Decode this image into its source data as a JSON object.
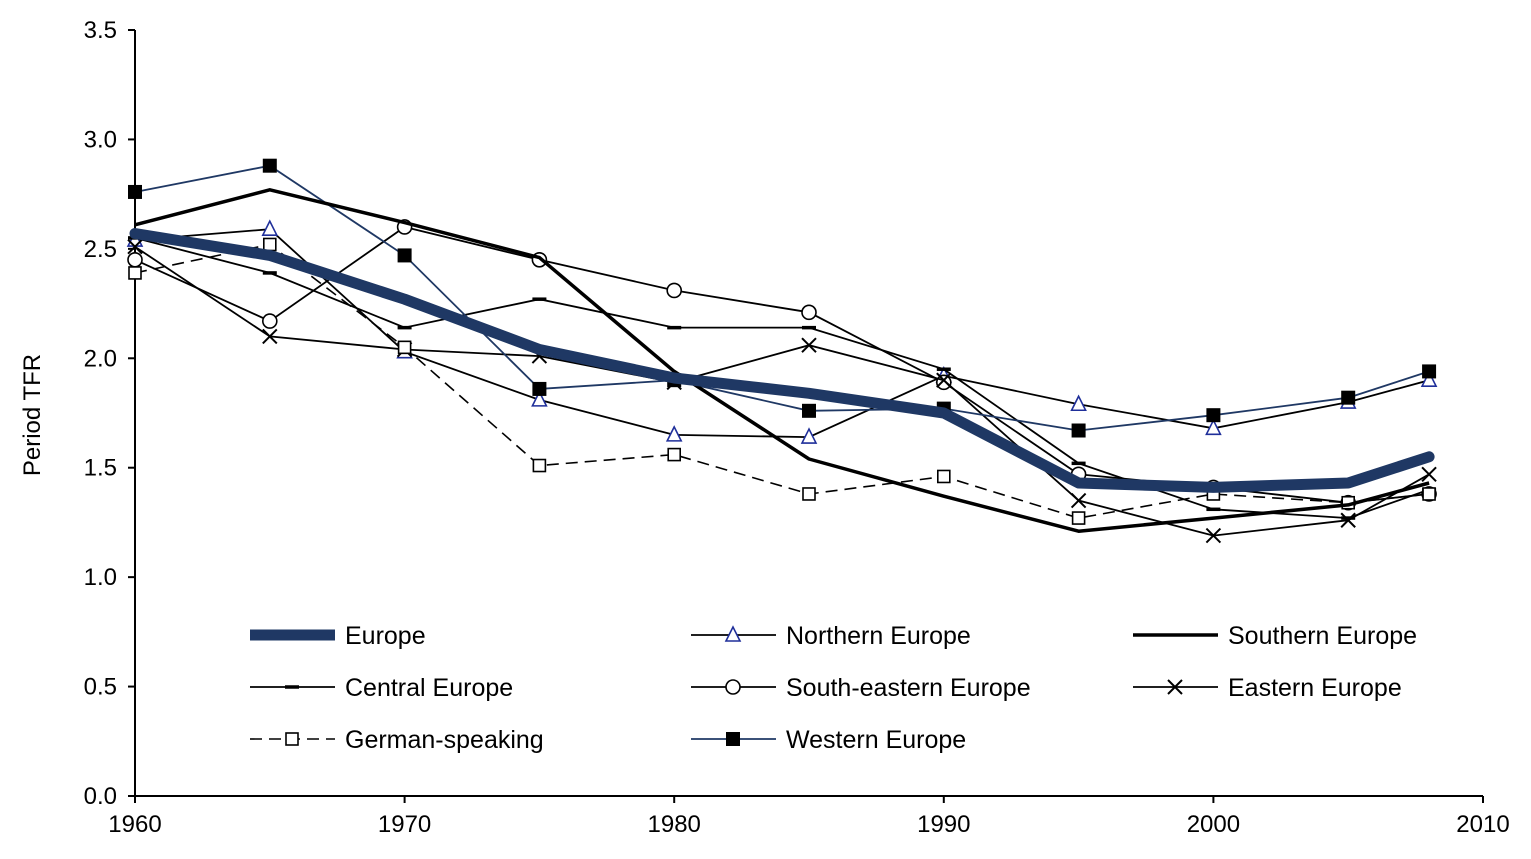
{
  "chart_data": {
    "type": "line",
    "title": "",
    "xlabel": "",
    "ylabel": "Period TFR",
    "xlim": [
      1960,
      2010
    ],
    "ylim": [
      0,
      3.5
    ],
    "xticks": [
      1960,
      1970,
      1980,
      1990,
      2000,
      2010
    ],
    "yticks": [
      "0.0",
      "0.5",
      "1.0",
      "1.5",
      "2.0",
      "2.5",
      "3.0",
      "3.5"
    ],
    "grid": false,
    "legend_position": "bottom-inside",
    "series": [
      {
        "name": "Europe",
        "style": "thick",
        "color": "#1f3864",
        "marker": "none",
        "x": [
          1960,
          1965,
          1970,
          1975,
          1980,
          1985,
          1990,
          1995,
          2000,
          2005,
          2008
        ],
        "y": [
          2.57,
          2.47,
          2.27,
          2.04,
          1.91,
          1.84,
          1.75,
          1.43,
          1.41,
          1.43,
          1.55
        ]
      },
      {
        "name": "Northern Europe",
        "style": "thin",
        "color": "#000000",
        "marker": "triangle",
        "x": [
          1960,
          1965,
          1970,
          1975,
          1980,
          1985,
          1990,
          1995,
          2000,
          2005,
          2008
        ],
        "y": [
          2.54,
          2.59,
          2.03,
          1.81,
          1.65,
          1.64,
          1.92,
          1.79,
          1.68,
          1.8,
          1.9
        ]
      },
      {
        "name": "Southern Europe",
        "style": "bold",
        "color": "#000000",
        "marker": "none",
        "x": [
          1960,
          1965,
          1970,
          1975,
          1980,
          1985,
          1990,
          1995,
          2000,
          2005,
          2008
        ],
        "y": [
          2.61,
          2.77,
          2.62,
          2.46,
          1.94,
          1.54,
          1.37,
          1.21,
          1.27,
          1.33,
          1.43
        ]
      },
      {
        "name": "Central Europe",
        "style": "thin",
        "color": "#000000",
        "marker": "dash",
        "x": [
          1960,
          1965,
          1970,
          1975,
          1980,
          1985,
          1990,
          1995,
          2000,
          2005,
          2008
        ],
        "y": [
          2.55,
          2.39,
          2.14,
          2.27,
          2.14,
          2.14,
          1.95,
          1.52,
          1.31,
          1.27,
          1.4
        ]
      },
      {
        "name": "South-eastern Europe",
        "style": "thin",
        "color": "#000000",
        "marker": "circle",
        "x": [
          1960,
          1965,
          1970,
          1975,
          1980,
          1985,
          1990,
          1995,
          2000,
          2005,
          2008
        ],
        "y": [
          2.45,
          2.17,
          2.6,
          2.45,
          2.31,
          2.21,
          1.89,
          1.47,
          1.41,
          1.34,
          1.38
        ]
      },
      {
        "name": "Eastern Europe",
        "style": "thin",
        "color": "#000000",
        "marker": "x",
        "x": [
          1960,
          1965,
          1970,
          1975,
          1980,
          1985,
          1990,
          1995,
          2000,
          2005,
          2008
        ],
        "y": [
          2.51,
          2.1,
          2.04,
          2.01,
          1.89,
          2.06,
          1.9,
          1.35,
          1.19,
          1.26,
          1.47
        ]
      },
      {
        "name": "German-speaking",
        "style": "dashed",
        "color": "#000000",
        "marker": "open-square",
        "x": [
          1960,
          1965,
          1970,
          1975,
          1980,
          1985,
          1990,
          1995,
          2000,
          2005,
          2008
        ],
        "y": [
          2.39,
          2.52,
          2.05,
          1.51,
          1.56,
          1.38,
          1.46,
          1.27,
          1.38,
          1.34,
          1.38
        ]
      },
      {
        "name": "Western Europe",
        "style": "thin",
        "color": "#1f3864",
        "marker": "filled-square",
        "x": [
          1960,
          1965,
          1970,
          1975,
          1980,
          1985,
          1990,
          1995,
          2000,
          2005,
          2008
        ],
        "y": [
          2.76,
          2.88,
          2.47,
          1.86,
          1.9,
          1.76,
          1.77,
          1.67,
          1.74,
          1.82,
          1.94
        ]
      }
    ],
    "legend_order": [
      "Europe",
      "Northern Europe",
      "Southern Europe",
      "Central Europe",
      "South-eastern Europe",
      "Eastern Europe",
      "German-speaking",
      "Western Europe"
    ]
  }
}
